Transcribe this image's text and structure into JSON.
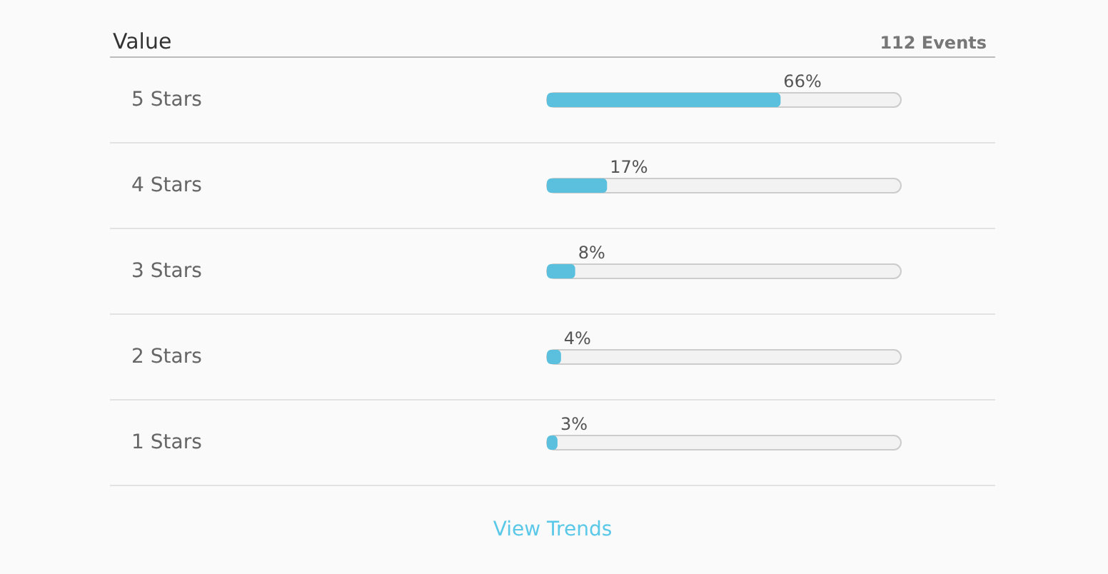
{
  "chart_data": {
    "type": "bar",
    "orientation": "horizontal",
    "title": "Value",
    "categories": [
      "5 Stars",
      "4 Stars",
      "3 Stars",
      "2 Stars",
      "1 Stars"
    ],
    "values": [
      66,
      17,
      8,
      4,
      3
    ],
    "value_labels": [
      "66%",
      "17%",
      "8%",
      "4%",
      "3%"
    ],
    "color": "#5bc0de",
    "xlim": [
      0,
      100
    ],
    "tick_labels": false,
    "annotations": [
      "112 Events",
      "View Trends"
    ]
  }
}
